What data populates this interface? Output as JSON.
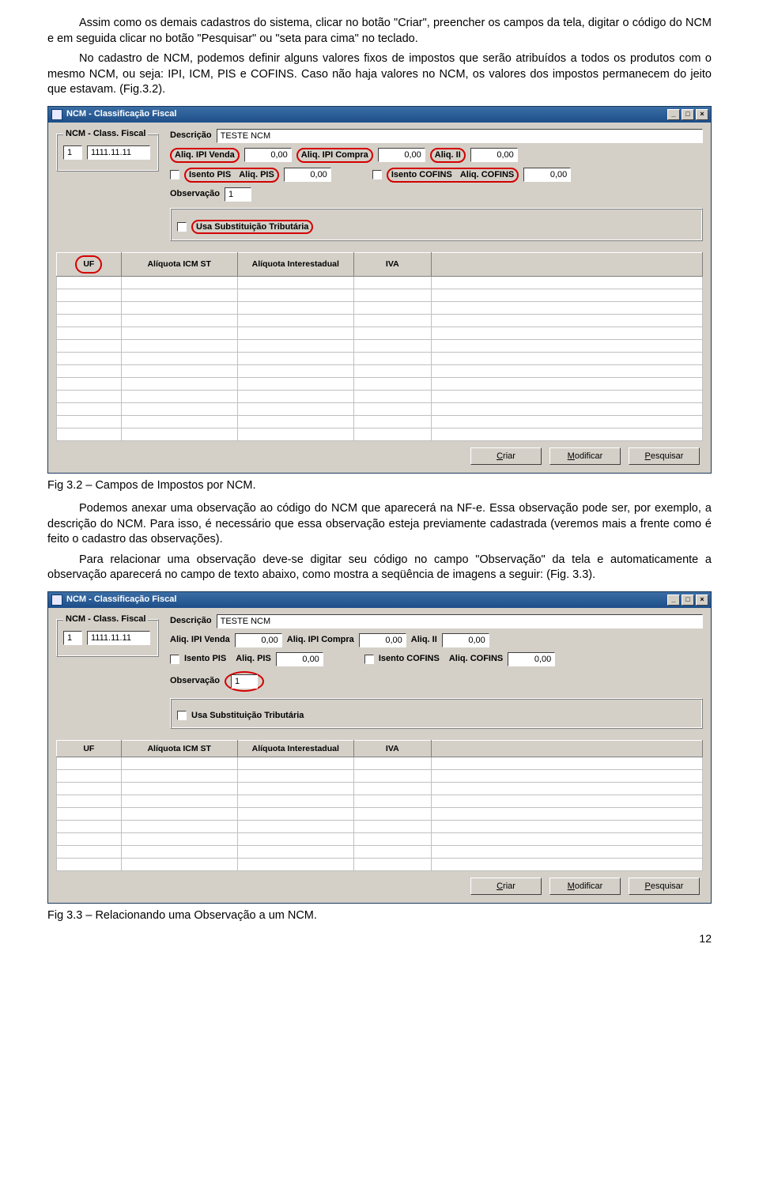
{
  "paragraphs": {
    "p1": "Assim como os demais cadastros do sistema, clicar no botão \"Criar\", preencher os campos da tela, digitar o código do NCM e em seguida clicar no botão \"Pesquisar\" ou \"seta para cima\" no teclado.",
    "p2": "No cadastro de NCM, podemos definir alguns valores fixos de impostos que serão atribuídos a todos os produtos com o mesmo NCM, ou seja: IPI, ICM, PIS e COFINS. Caso não haja valores no NCM, os valores dos impostos permanecem do jeito que estavam. (Fig.3.2).",
    "fig32": "Fig 3.2 – Campos de Impostos por NCM.",
    "p3": "Podemos anexar uma observação ao código do NCM que aparecerá na NF-e. Essa observação pode ser, por exemplo, a descrição do NCM. Para isso, é necessário que essa observação esteja previamente cadastrada (veremos mais a frente como é feito o cadastro das observações).",
    "p4": "Para relacionar uma observação deve-se digitar seu código no campo \"Observação\" da tela e automaticamente a observação aparecerá no campo de texto abaixo, como mostra a seqüência de imagens a seguir: (Fig. 3.3).",
    "fig33": "Fig 3.3 – Relacionando uma Observação a um NCM.",
    "page": "12"
  },
  "window": {
    "title": "NCM - Classificação Fiscal",
    "group_title": "NCM - Class. Fiscal",
    "seq": "1",
    "code": "1111.11.11",
    "labels": {
      "descricao": "Descrição",
      "aliq_ipi_venda": "Aliq. IPI Venda",
      "aliq_ipi_compra": "Aliq. IPI Compra",
      "aliq_ii": "Aliq. II",
      "isento_pis": "Isento PIS",
      "aliq_pis": "Aliq. PIS",
      "isento_cofins": "Isento COFINS",
      "aliq_cofins": "Aliq. COFINS",
      "observacao": "Observação",
      "usa_st": "Usa Substituição Tributária"
    },
    "values": {
      "descricao": "TESTE NCM",
      "aliq_ipi_venda": "0,00",
      "aliq_ipi_compra": "0,00",
      "aliq_ii": "0,00",
      "aliq_pis": "0,00",
      "aliq_cofins": "0,00",
      "observacao": "1"
    },
    "table_headers": {
      "uf": "UF",
      "icm_st": "Alíquota ICM ST",
      "inter": "Alíquota Interestadual",
      "iva": "IVA"
    },
    "row_count": 13,
    "row_count_small": 9,
    "buttons": {
      "criar": "Criar",
      "modificar": "Modificar",
      "pesquisar": "Pesquisar"
    }
  },
  "style": {
    "page_bg": "#ffffff",
    "win_bg": "#d4d0c8",
    "titlebar_grad_top": "#3b6ea5",
    "titlebar_grad_bot": "#1d4e89",
    "highlight_red": "#d40000"
  }
}
